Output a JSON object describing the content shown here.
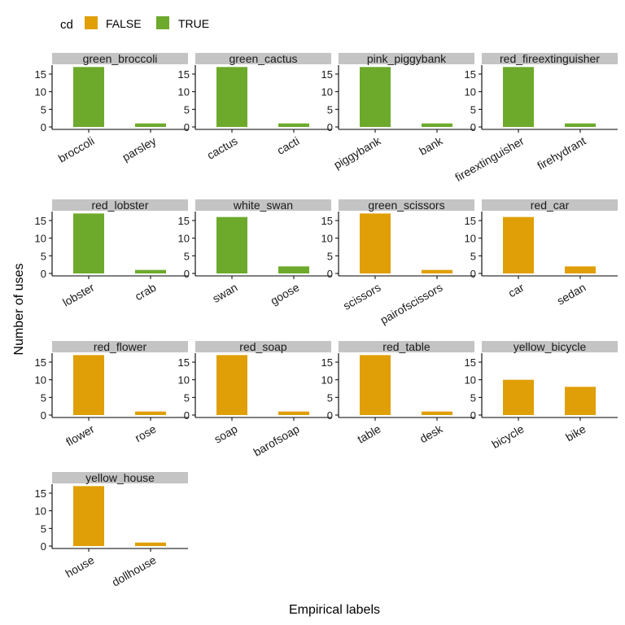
{
  "chart_data": {
    "type": "bar",
    "facet_layout": "wrap-4-columns",
    "xlabel": "Empirical labels",
    "ylabel": "Number of uses",
    "ylim": [
      0,
      18
    ],
    "yticks": [
      0,
      5,
      10,
      15
    ],
    "legend": {
      "title": "cd",
      "position": "top-left",
      "entries": [
        {
          "label": "FALSE",
          "color": "#E09F06"
        },
        {
          "label": "TRUE",
          "color": "#6DAA2C"
        }
      ]
    },
    "strip_color": "#C4C4C4",
    "panels": [
      {
        "title": "green_broccoli",
        "cd": "TRUE",
        "categories": [
          "broccoli",
          "parsley"
        ],
        "values": [
          17,
          1
        ]
      },
      {
        "title": "green_cactus",
        "cd": "TRUE",
        "categories": [
          "cactus",
          "cacti"
        ],
        "values": [
          17,
          1
        ]
      },
      {
        "title": "pink_piggybank",
        "cd": "TRUE",
        "categories": [
          "piggybank",
          "bank"
        ],
        "values": [
          17,
          1
        ]
      },
      {
        "title": "red_fireextinguisher",
        "cd": "TRUE",
        "categories": [
          "fireextinguisher",
          "firehydrant"
        ],
        "values": [
          17,
          1
        ]
      },
      {
        "title": "red_lobster",
        "cd": "TRUE",
        "categories": [
          "lobster",
          "crab"
        ],
        "values": [
          17,
          1
        ]
      },
      {
        "title": "white_swan",
        "cd": "TRUE",
        "categories": [
          "swan",
          "goose"
        ],
        "values": [
          16,
          2
        ]
      },
      {
        "title": "green_scissors",
        "cd": "FALSE",
        "categories": [
          "scissors",
          "pairofscissors"
        ],
        "values": [
          17,
          1
        ]
      },
      {
        "title": "red_car",
        "cd": "FALSE",
        "categories": [
          "car",
          "sedan"
        ],
        "values": [
          16,
          2
        ]
      },
      {
        "title": "red_flower",
        "cd": "FALSE",
        "categories": [
          "flower",
          "rose"
        ],
        "values": [
          17,
          1
        ]
      },
      {
        "title": "red_soap",
        "cd": "FALSE",
        "categories": [
          "soap",
          "barofsoap"
        ],
        "values": [
          17,
          1
        ]
      },
      {
        "title": "red_table",
        "cd": "FALSE",
        "categories": [
          "table",
          "desk"
        ],
        "values": [
          17,
          1
        ]
      },
      {
        "title": "yellow_bicycle",
        "cd": "FALSE",
        "categories": [
          "bicycle",
          "bike"
        ],
        "values": [
          10,
          8
        ]
      },
      {
        "title": "yellow_house",
        "cd": "FALSE",
        "categories": [
          "house",
          "dollhouse"
        ],
        "values": [
          17,
          1
        ]
      }
    ]
  }
}
